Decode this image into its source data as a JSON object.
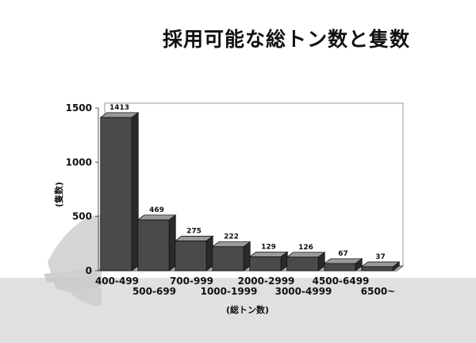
{
  "chart_data": {
    "type": "bar",
    "title": "採用可能な総トン数と隻数",
    "xlabel": "(総トン数)",
    "ylabel": "(隻数)",
    "categories": [
      "400-499",
      "500-699",
      "700-999",
      "1000-1999",
      "2000-2999",
      "3000-4999",
      "4500-6499",
      "6500~"
    ],
    "values": [
      1413,
      469,
      275,
      222,
      129,
      126,
      67,
      37
    ],
    "yticks": [
      0,
      500,
      1000,
      1500
    ],
    "ylim": [
      0,
      1500
    ],
    "grid": false,
    "legend": "none",
    "colors": {
      "bar_front": "#4a4a4a",
      "bar_top": "#9a9a9a",
      "bar_side": "#2a2a2a",
      "floor": "#b8b8b8",
      "text": "#111111"
    }
  }
}
